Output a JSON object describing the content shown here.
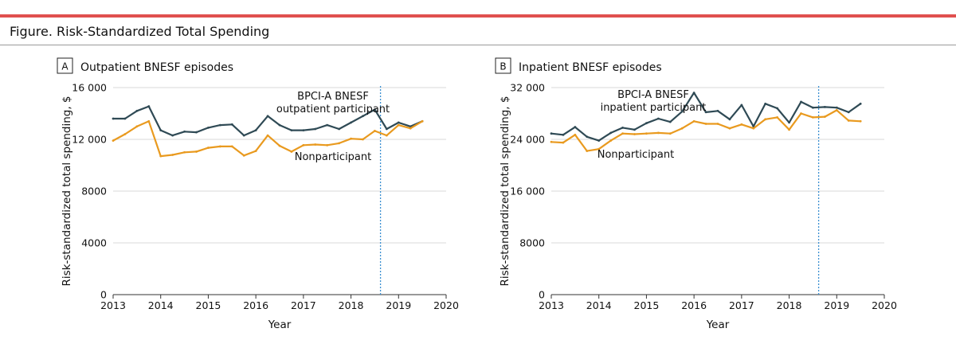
{
  "figure_title": "Figure. Risk-Standardized Total Spending",
  "colors": {
    "participant": "#2f4a55",
    "nonparticipant": "#e99a1f",
    "divider": "#3a8fd1",
    "axis": "#333333",
    "grid": "#d9d9d9",
    "accent": "#e0504f"
  },
  "chart_data": [
    {
      "type": "line",
      "panel_letter": "A",
      "panel_title": "Outpatient BNESF episodes",
      "title": "Outpatient BNESF episodes",
      "xlabel": "Year",
      "ylabel": "Risk-standardized total spending, $",
      "xlim": [
        2013,
        2020
      ],
      "ylim": [
        0,
        16000
      ],
      "xticks": [
        2013,
        2014,
        2015,
        2016,
        2017,
        2018,
        2019,
        2020
      ],
      "xtick_labels": [
        "2013",
        "2014",
        "2015",
        "2016",
        "2017",
        "2018",
        "2019",
        "2020"
      ],
      "yticks": [
        0,
        4000,
        8000,
        12000,
        16000
      ],
      "ytick_labels": [
        "0",
        "4000",
        "8000",
        "12 000",
        "16 000"
      ],
      "vline_x": 2018.62,
      "x": [
        2013.0,
        2013.25,
        2013.5,
        2013.75,
        2014.0,
        2014.25,
        2014.5,
        2014.75,
        2015.0,
        2015.25,
        2015.5,
        2015.75,
        2016.0,
        2016.25,
        2016.5,
        2016.75,
        2017.0,
        2017.25,
        2017.5,
        2017.75,
        2018.0,
        2018.25,
        2018.5,
        2018.75,
        2019.0,
        2019.25,
        2019.5
      ],
      "series": [
        {
          "name": "BPCI-A BNESF outpatient participant",
          "label_lines": [
            "BPCI-A BNESF",
            "outpatient participant"
          ],
          "color": "#2f4a55",
          "values": [
            13600,
            13600,
            14200,
            14550,
            12700,
            12300,
            12600,
            12550,
            12900,
            13100,
            13150,
            12300,
            12700,
            13800,
            13100,
            12700,
            12700,
            12800,
            13100,
            12800,
            13300,
            13800,
            14300,
            12800,
            13300,
            13000,
            13400
          ]
        },
        {
          "name": "Nonparticipant",
          "label_lines": [
            "Nonparticipant"
          ],
          "color": "#e99a1f",
          "values": [
            11900,
            12400,
            13000,
            13400,
            10700,
            10800,
            11000,
            11050,
            11350,
            11450,
            11450,
            10750,
            11100,
            12300,
            11500,
            11050,
            11550,
            11600,
            11550,
            11700,
            12050,
            12000,
            12650,
            12300,
            13100,
            12850,
            13400
          ]
        }
      ]
    },
    {
      "type": "line",
      "panel_letter": "B",
      "panel_title": "Inpatient BNESF episodes",
      "title": "Inpatient BNESF episodes",
      "xlabel": "Year",
      "ylabel": "Risk-standardized total spending, $",
      "xlim": [
        2013,
        2020
      ],
      "ylim": [
        0,
        32000
      ],
      "xticks": [
        2013,
        2014,
        2015,
        2016,
        2017,
        2018,
        2019,
        2020
      ],
      "xtick_labels": [
        "2013",
        "2014",
        "2015",
        "2016",
        "2017",
        "2018",
        "2019",
        "2020"
      ],
      "yticks": [
        0,
        8000,
        16000,
        24000,
        32000
      ],
      "ytick_labels": [
        "0",
        "8000",
        "16 000",
        "24 000",
        "32 000"
      ],
      "vline_x": 2018.62,
      "x": [
        2013.0,
        2013.25,
        2013.5,
        2013.75,
        2014.0,
        2014.25,
        2014.5,
        2014.75,
        2015.0,
        2015.25,
        2015.5,
        2015.75,
        2016.0,
        2016.25,
        2016.5,
        2016.75,
        2017.0,
        2017.25,
        2017.5,
        2017.75,
        2018.0,
        2018.25,
        2018.5,
        2018.75,
        2019.0,
        2019.25,
        2019.5
      ],
      "series": [
        {
          "name": "BPCI-A BNESF inpatient participant",
          "label_lines": [
            "BPCI-A BNESF",
            "inpatient participant"
          ],
          "color": "#2f4a55",
          "values": [
            24900,
            24700,
            25900,
            24400,
            23800,
            25000,
            25800,
            25500,
            26500,
            27200,
            26700,
            28300,
            31200,
            28200,
            28400,
            27100,
            29300,
            26000,
            29500,
            28800,
            26600,
            29800,
            28900,
            29000,
            28900,
            28200,
            29500
          ]
        },
        {
          "name": "Nonparticipant",
          "label_lines": [
            "Nonparticipant"
          ],
          "color": "#e99a1f",
          "values": [
            23600,
            23500,
            24700,
            22200,
            22500,
            23800,
            24900,
            24800,
            24900,
            25000,
            24900,
            25700,
            26800,
            26400,
            26400,
            25700,
            26300,
            25700,
            27100,
            27400,
            25500,
            28000,
            27400,
            27500,
            28500,
            26900,
            26800
          ]
        }
      ]
    }
  ]
}
